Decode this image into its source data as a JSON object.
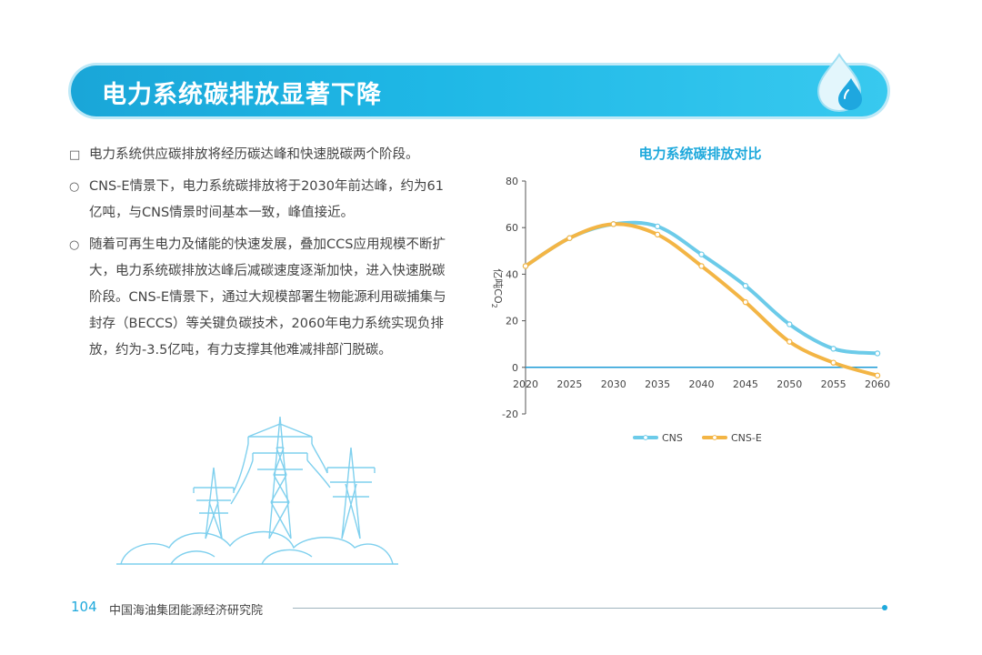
{
  "header": {
    "title": "电力系统碳排放显著下降",
    "icon": "water-drop-icon"
  },
  "bullets": [
    {
      "marker": "□",
      "text": "电力系统供应碳排放将经历碳达峰和快速脱碳两个阶段。"
    },
    {
      "marker": "○",
      "text": "CNS-E情景下，电力系统碳排放将于2030年前达峰，约为61亿吨，与CNS情景时间基本一致，峰值接近。"
    },
    {
      "marker": "○",
      "text": "随着可再生电力及储能的快速发展，叠加CCS应用规模不断扩大，电力系统碳排放达峰后减碳速度逐渐加快，进入快速脱碳阶段。CNS-E情景下，通过大规模部署生物能源利用碳捕集与封存（BECCS）等关键负碳技术，2060年电力系统实现负排放，约为-3.5亿吨，有力支撑其他难减排部门脱碳。"
    }
  ],
  "illustration": {
    "icon": "power-tower-icon"
  },
  "chart_data": {
    "type": "line",
    "title": "电力系统碳排放对比",
    "ylabel": "亿吨CO",
    "ylabel_sub": "2",
    "x": [
      2020,
      2025,
      2030,
      2035,
      2040,
      2045,
      2050,
      2055,
      2060
    ],
    "ylim": [
      -20,
      80
    ],
    "yticks": [
      -20,
      0,
      20,
      40,
      60,
      80
    ],
    "legend_position": "bottom",
    "grid": false,
    "series": [
      {
        "name": "CNS",
        "color": "#6ccbe9",
        "values": [
          43.5,
          55.5,
          61.5,
          60.5,
          48.5,
          35,
          18.5,
          8,
          6
        ]
      },
      {
        "name": "CNS-E",
        "color": "#f3b545",
        "values": [
          43.5,
          55.5,
          61.5,
          57,
          43.5,
          28,
          11,
          2,
          -3.5
        ]
      }
    ],
    "zero_line_color": "#1e9bd7"
  },
  "footer": {
    "page_number": "104",
    "organization": "中国海油集团能源经济研究院"
  }
}
